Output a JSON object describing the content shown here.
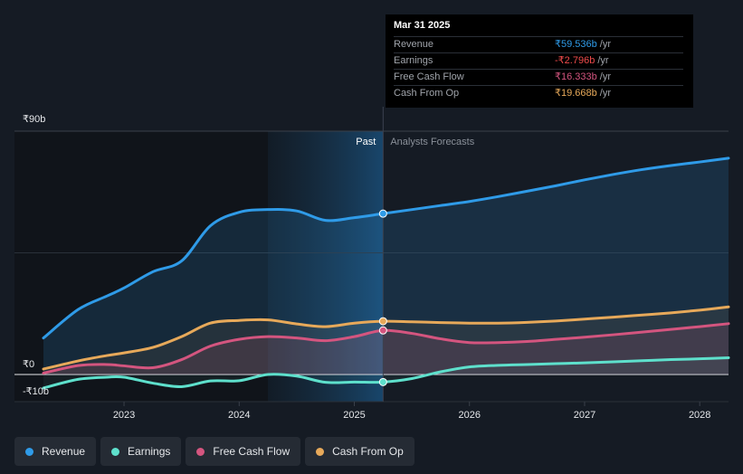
{
  "tooltip": {
    "date": "Mar 31 2025",
    "rows": [
      {
        "label": "Revenue",
        "value": "₹59.536b",
        "unit": "/yr",
        "color": "#2f9be8"
      },
      {
        "label": "Earnings",
        "value": "-₹2.796b",
        "unit": "/yr",
        "color": "#ef4b4b"
      },
      {
        "label": "Free Cash Flow",
        "value": "₹16.333b",
        "unit": "/yr",
        "color": "#d4557f"
      },
      {
        "label": "Cash From Op",
        "value": "₹19.668b",
        "unit": "/yr",
        "color": "#e7a95a"
      }
    ]
  },
  "legend": [
    {
      "label": "Revenue",
      "color": "#2f9be8"
    },
    {
      "label": "Earnings",
      "color": "#5ee0cc"
    },
    {
      "label": "Free Cash Flow",
      "color": "#d4557f"
    },
    {
      "label": "Cash From Op",
      "color": "#e7a95a"
    }
  ],
  "chart_data": {
    "type": "area",
    "title": "",
    "y_tick_labels": [
      "₹90b",
      "₹0",
      "-₹10b"
    ],
    "ylim": [
      -10,
      90
    ],
    "xlim": [
      2022.3,
      2028.25
    ],
    "x_ticks": [
      2023,
      2024,
      2025,
      2026,
      2027,
      2028
    ],
    "x_tick_labels": [
      "2023",
      "2024",
      "2025",
      "2026",
      "2027",
      "2028"
    ],
    "past_label": "Past",
    "forecast_label": "Analysts Forecasts",
    "current_x": 2025.25,
    "highlight_start": 2024.25,
    "series": [
      {
        "name": "Revenue",
        "color": "#2f9be8",
        "x": [
          2022.3,
          2022.6,
          2022.85,
          2023.0,
          2023.25,
          2023.5,
          2023.75,
          2024.0,
          2024.25,
          2024.5,
          2024.75,
          2025.0,
          2025.25,
          2025.5,
          2025.75,
          2026.0,
          2026.25,
          2026.5,
          2026.75,
          2027.0,
          2027.25,
          2027.5,
          2027.75,
          2028.0,
          2028.25
        ],
        "values": [
          13.5,
          24,
          29,
          32,
          38,
          42,
          55,
          60,
          61,
          60.5,
          57,
          58,
          59.5,
          61,
          62.5,
          64,
          65.8,
          67.8,
          69.8,
          72,
          74,
          75.8,
          77.3,
          78.6,
          80
        ]
      },
      {
        "name": "Earnings",
        "color": "#5ee0cc",
        "x": [
          2022.3,
          2022.6,
          2022.85,
          2023.0,
          2023.25,
          2023.5,
          2023.75,
          2024.0,
          2024.25,
          2024.5,
          2024.75,
          2025.0,
          2025.25,
          2025.5,
          2025.75,
          2026.0,
          2026.25,
          2026.5,
          2026.75,
          2027.0,
          2027.25,
          2027.5,
          2027.75,
          2028.0,
          2028.25
        ],
        "values": [
          -5,
          -1.8,
          -1,
          -1,
          -3.2,
          -4.5,
          -2.4,
          -2.3,
          0,
          -0.6,
          -2.9,
          -2.8,
          -2.8,
          -1.5,
          1,
          2.8,
          3.4,
          3.7,
          4.0,
          4.3,
          4.7,
          5.1,
          5.5,
          5.8,
          6.2
        ]
      },
      {
        "name": "Free Cash Flow",
        "color": "#d4557f",
        "x": [
          2022.3,
          2022.6,
          2022.85,
          2023.0,
          2023.25,
          2023.5,
          2023.75,
          2024.0,
          2024.25,
          2024.5,
          2024.75,
          2025.0,
          2025.25,
          2025.5,
          2025.75,
          2026.0,
          2026.25,
          2026.5,
          2026.75,
          2027.0,
          2027.25,
          2027.5,
          2027.75,
          2028.0,
          2028.25
        ],
        "values": [
          0.5,
          3.3,
          3.7,
          3.2,
          2.5,
          5.5,
          10.5,
          13,
          14,
          13.5,
          12.5,
          14,
          16.3,
          15.2,
          13.2,
          11.8,
          11.8,
          12.2,
          13,
          13.8,
          14.7,
          15.7,
          16.7,
          17.7,
          18.8
        ]
      },
      {
        "name": "Cash From Op",
        "color": "#e7a95a",
        "x": [
          2022.3,
          2022.6,
          2022.85,
          2023.0,
          2023.25,
          2023.5,
          2023.75,
          2024.0,
          2024.25,
          2024.5,
          2024.75,
          2025.0,
          2025.25,
          2025.5,
          2025.75,
          2026.0,
          2026.25,
          2026.5,
          2026.75,
          2027.0,
          2027.25,
          2027.5,
          2027.75,
          2028.0,
          2028.25
        ],
        "values": [
          2,
          5,
          7,
          8,
          10,
          14,
          19,
          20,
          20.2,
          18.7,
          17.7,
          19,
          19.7,
          19.5,
          19.2,
          19.0,
          19.0,
          19.3,
          19.8,
          20.5,
          21.2,
          22,
          22.8,
          23.8,
          25
        ]
      }
    ]
  }
}
